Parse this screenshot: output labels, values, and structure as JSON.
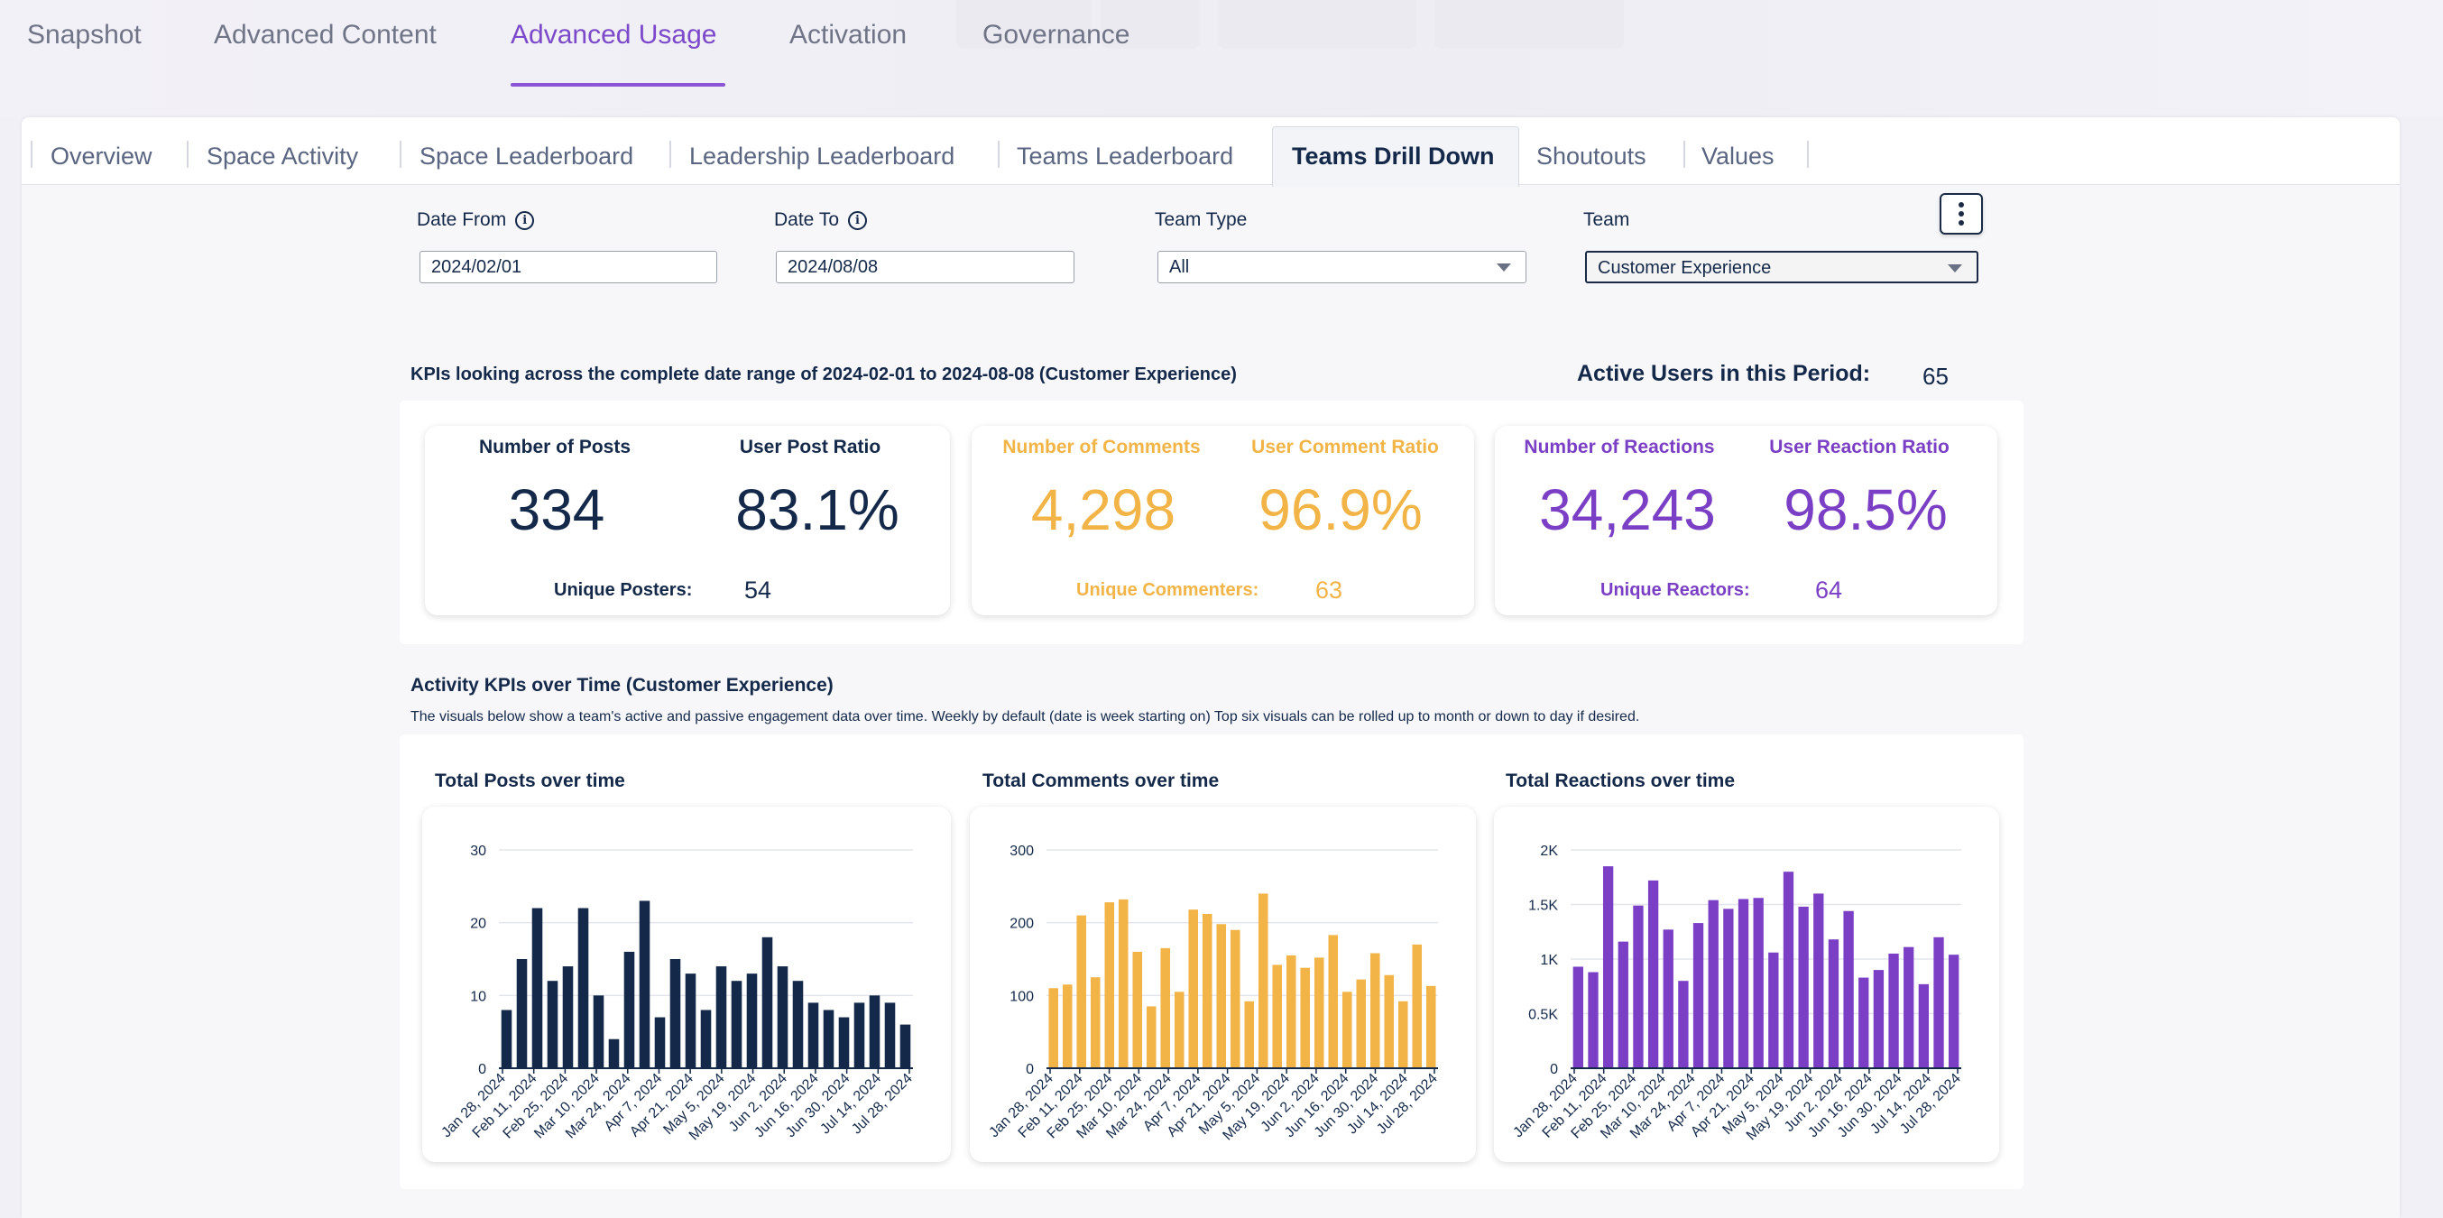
{
  "main_tabs": [
    "Snapshot",
    "Advanced Content",
    "Advanced Usage",
    "Activation",
    "Governance"
  ],
  "main_active": "Advanced Usage",
  "sub_tabs": [
    "Overview",
    "Space Activity",
    "Space Leaderboard",
    "Leadership Leaderboard",
    "Teams Leaderboard",
    "Teams Drill Down",
    "Shoutouts",
    "Values"
  ],
  "sub_active": "Teams Drill Down",
  "filters": {
    "date_from_label": "Date From",
    "date_from_value": "2024/02/01",
    "date_to_label": "Date To",
    "date_to_value": "2024/08/08",
    "team_type_label": "Team Type",
    "team_type_value": "All",
    "team_label": "Team",
    "team_value": "Customer Experience"
  },
  "kpi_header": "KPIs looking across the complete date range of 2024-02-01 to 2024-08-08 (Customer Experience)",
  "active_users_label": "Active Users in this Period:",
  "active_users_value": "65",
  "kpis": {
    "posts": {
      "label": "Number of Posts",
      "value": "334",
      "ratio_label": "User Post Ratio",
      "ratio_value": "83.1%",
      "unique_label": "Unique Posters",
      "unique_value": "54"
    },
    "comments": {
      "label": "Number of Comments",
      "value": "4,298",
      "ratio_label": "User Comment Ratio",
      "ratio_value": "96.9%",
      "unique_label": "Unique Commenters",
      "unique_value": "63"
    },
    "reactions": {
      "label": "Number of Reactions",
      "value": "34,243",
      "ratio_label": "User Reaction Ratio",
      "ratio_value": "98.5%",
      "unique_label": "Unique Reactors",
      "unique_value": "64"
    }
  },
  "activity_title": "Activity KPIs over Time (Customer Experience)",
  "activity_desc": "The visuals below show a team's active and passive engagement data over time. Weekly by default (date is week starting on) Top six visuals can be rolled up to month or down to day if desired.",
  "colors": {
    "navy": "#14294a",
    "amber": "#f2b447",
    "purple": "#7b3fc6"
  },
  "chart_data": [
    {
      "type": "bar",
      "title": "Total Posts over time",
      "color": "#14294a",
      "x_labels": [
        "Jan 28, 2024",
        "Feb 11, 2024",
        "Feb 25, 2024",
        "Mar 10, 2024",
        "Mar 24, 2024",
        "Apr 7, 2024",
        "Apr 21, 2024",
        "May 5, 2024",
        "May 19, 2024",
        "Jun 2, 2024",
        "Jun 16, 2024",
        "Jun 30, 2024",
        "Jul 14, 2024",
        "Jul 28, 2024"
      ],
      "values": [
        8,
        15,
        22,
        12,
        14,
        22,
        10,
        4,
        16,
        23,
        7,
        15,
        13,
        8,
        14,
        12,
        13,
        18,
        14,
        12,
        9,
        8,
        7,
        9,
        10,
        9,
        6
      ],
      "yticks": [
        "0",
        "10",
        "20",
        "30"
      ],
      "ytick_values": [
        0,
        10,
        20,
        30
      ],
      "ylim": [
        0,
        30
      ]
    },
    {
      "type": "bar",
      "title": "Total Comments over time",
      "color": "#f2b447",
      "x_labels": [
        "Jan 28, 2024",
        "Feb 11, 2024",
        "Feb 25, 2024",
        "Mar 10, 2024",
        "Mar 24, 2024",
        "Apr 7, 2024",
        "Apr 21, 2024",
        "May 5, 2024",
        "May 19, 2024",
        "Jun 2, 2024",
        "Jun 16, 2024",
        "Jun 30, 2024",
        "Jul 14, 2024",
        "Jul 28, 2024"
      ],
      "values": [
        110,
        115,
        210,
        125,
        228,
        232,
        160,
        85,
        165,
        105,
        218,
        212,
        198,
        190,
        92,
        240,
        142,
        155,
        138,
        152,
        183,
        105,
        122,
        158,
        128,
        92,
        170,
        113
      ],
      "yticks": [
        "0",
        "100",
        "200",
        "300"
      ],
      "ytick_values": [
        0,
        100,
        200,
        300
      ],
      "ylim": [
        0,
        300
      ]
    },
    {
      "type": "bar",
      "title": "Total Reactions over time",
      "color": "#7b3fc6",
      "x_labels": [
        "Jan 28, 2024",
        "Feb 11, 2024",
        "Feb 25, 2024",
        "Mar 10, 2024",
        "Mar 24, 2024",
        "Apr 7, 2024",
        "Apr 21, 2024",
        "May 5, 2024",
        "May 19, 2024",
        "Jun 2, 2024",
        "Jun 16, 2024",
        "Jun 30, 2024",
        "Jul 14, 2024",
        "Jul 28, 2024"
      ],
      "values": [
        930,
        880,
        1850,
        1160,
        1490,
        1720,
        1270,
        800,
        1330,
        1540,
        1460,
        1550,
        1560,
        1060,
        1800,
        1480,
        1600,
        1180,
        1440,
        830,
        900,
        1050,
        1110,
        770,
        1200,
        1040
      ],
      "yticks": [
        "0",
        "0.5K",
        "1K",
        "1.5K",
        "2K"
      ],
      "ytick_values": [
        0,
        500,
        1000,
        1500,
        2000
      ],
      "ylim": [
        0,
        2000
      ]
    }
  ]
}
